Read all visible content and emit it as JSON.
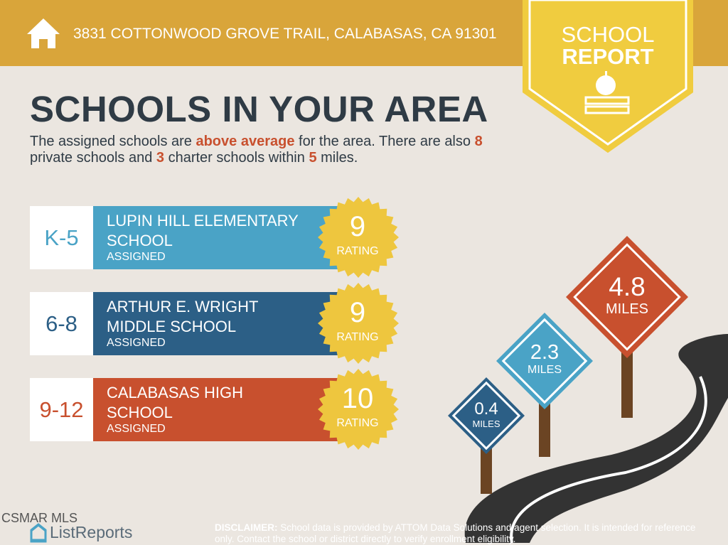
{
  "header": {
    "address": "3831 COTTONWOOD GROVE TRAIL, CALABASAS, CA 91301"
  },
  "badge": {
    "line1": "SCHOOL",
    "line2": "REPORT"
  },
  "heading": "SCHOOLS IN YOUR AREA",
  "intro": {
    "segments": [
      {
        "text": "The assigned schools are ",
        "highlight": false
      },
      {
        "text": "above average",
        "highlight": true
      },
      {
        "text": " for the area. There are also ",
        "highlight": false
      },
      {
        "text": "8",
        "highlight": true
      },
      {
        "text": " private schools and ",
        "highlight": false
      },
      {
        "text": "3",
        "highlight": true
      },
      {
        "text": " charter schools within ",
        "highlight": false
      },
      {
        "text": "5",
        "highlight": true
      },
      {
        "text": " miles.",
        "highlight": false
      }
    ]
  },
  "schools": [
    {
      "grades": "K-5",
      "name": "LUPIN HILL ELEMENTARY SCHOOL",
      "status": "ASSIGNED",
      "rating": 9,
      "rating_label": "RATING",
      "color": "#4aa3c6"
    },
    {
      "grades": "6-8",
      "name": "ARTHUR E. WRIGHT MIDDLE SCHOOL",
      "status": "ASSIGNED",
      "rating": 9,
      "rating_label": "RATING",
      "color": "#2c5f86"
    },
    {
      "grades": "9-12",
      "name": "CALABASAS HIGH SCHOOL",
      "status": "ASSIGNED",
      "rating": 10,
      "rating_label": "RATING",
      "color": "#c8502e"
    }
  ],
  "signs": [
    {
      "distance": "0.4",
      "unit": "MILES",
      "color": "#2c5f86"
    },
    {
      "distance": "2.3",
      "unit": "MILES",
      "color": "#4aa3c6"
    },
    {
      "distance": "4.8",
      "unit": "MILES",
      "color": "#c8502e"
    }
  ],
  "footer": {
    "mls": "CSMAR MLS",
    "brand": "ListReports",
    "disclaimer_label": "DISCLAIMER:",
    "disclaimer": " School data is provided by ATTOM Data Solutions and agent selection. It is intended for reference only. Contact the school or district directly to verify enrollment eligibility."
  }
}
